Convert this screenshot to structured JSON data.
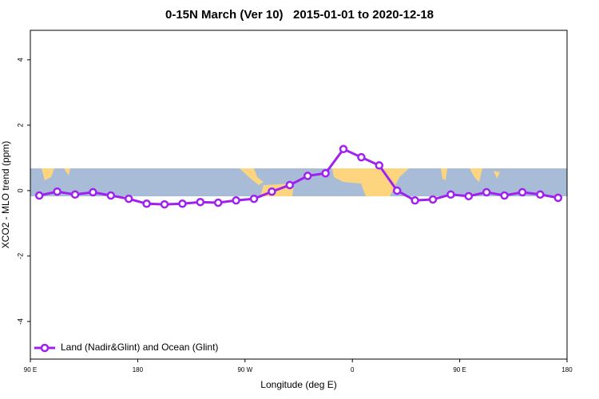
{
  "chart_data": {
    "type": "line",
    "title": "0-15N March (Ver 10)   2015-01-01 to 2020-12-18",
    "x_label": "Longitude (deg E)",
    "y_label": "XCO2 - MLO trend (ppm)",
    "x": [
      97.5,
      112.5,
      127.5,
      142.5,
      157.5,
      172.5,
      187.5,
      202.5,
      217.5,
      232.5,
      247.5,
      262.5,
      277.5,
      292.5,
      307.5,
      322.5,
      337.5,
      352.5,
      367.5,
      382.5,
      397.5,
      412.5,
      427.5,
      442.5,
      457.5,
      472.5,
      487.5,
      502.5,
      517.5,
      532.5
    ],
    "series": [
      {
        "name": "Land (Nadir&Glint) and Ocean (Glint)",
        "color": "#a020f0",
        "values": [
          -0.15,
          -0.03,
          -0.12,
          -0.05,
          -0.15,
          -0.25,
          -0.4,
          -0.42,
          -0.4,
          -0.35,
          -0.37,
          -0.3,
          -0.25,
          -0.03,
          0.17,
          0.45,
          0.53,
          1.27,
          1.02,
          0.77,
          0.0,
          -0.3,
          -0.27,
          -0.12,
          -0.17,
          -0.05,
          -0.15,
          -0.05,
          -0.12,
          -0.22
        ]
      }
    ],
    "xlim": [
      90,
      540
    ],
    "xticks": [
      {
        "value": 90,
        "label": "90 E"
      },
      180,
      {
        "value": 270,
        "label": "90 W"
      },
      {
        "value": 360,
        "label": "0"
      },
      {
        "value": 450,
        "label": "90 E"
      },
      {
        "value": 540,
        "label": "180"
      }
    ],
    "ylim": [
      -5.15,
      4.9
    ],
    "yticks": [
      -4,
      -2,
      0,
      2,
      4
    ],
    "grid": false,
    "legend": "bottom-left"
  }
}
